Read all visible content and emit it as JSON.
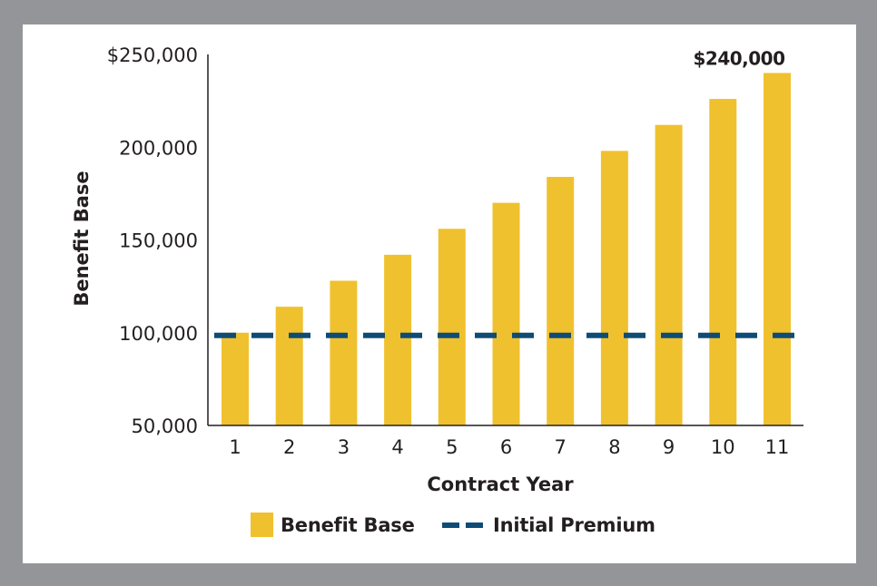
{
  "chart_data": {
    "type": "bar",
    "title": "",
    "xlabel": "Contract Year",
    "ylabel": "Benefit Base",
    "categories": [
      "1",
      "2",
      "3",
      "4",
      "5",
      "6",
      "7",
      "8",
      "9",
      "10",
      "11"
    ],
    "series": [
      {
        "name": "Benefit Base",
        "type": "bar",
        "color": "#F0C12E",
        "values": [
          100000,
          114000,
          128000,
          142000,
          156000,
          170000,
          184000,
          198000,
          212000,
          226000,
          240000
        ]
      },
      {
        "name": "Initial Premium",
        "type": "line",
        "style": "dashed",
        "color": "#0E4C76",
        "value": 100000
      }
    ],
    "ylim": [
      50000,
      250000
    ],
    "yticks": [
      50000,
      100000,
      150000,
      200000,
      250000
    ],
    "ytick_labels": [
      "50,000",
      "100,000",
      "150,000",
      "200,000",
      "$250,000"
    ],
    "annotations": [
      {
        "category": "11",
        "text": "$240,000"
      }
    ],
    "grid": false,
    "legend": {
      "placement": "bottom",
      "items": [
        {
          "label": "Benefit Base",
          "kind": "swatch",
          "color": "#F0C12E"
        },
        {
          "label": "Initial Premium",
          "kind": "dashed-line",
          "color": "#0E4C76"
        }
      ]
    }
  }
}
